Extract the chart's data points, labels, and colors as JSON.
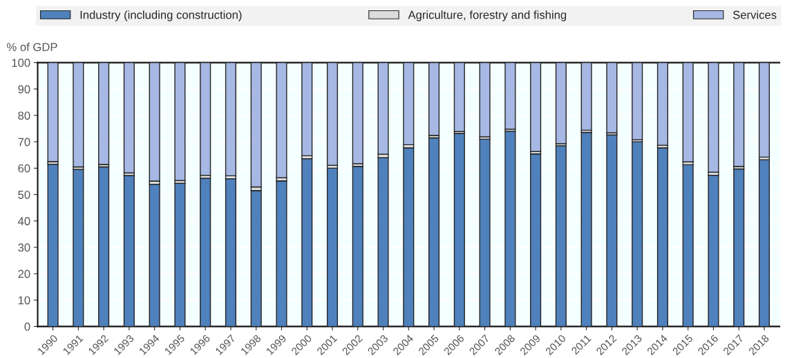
{
  "chart_data": {
    "type": "bar",
    "stacked": true,
    "ylabel": "% of GDP",
    "categories": [
      "1990",
      "1991",
      "1992",
      "1993",
      "1994",
      "1995",
      "1996",
      "1997",
      "1998",
      "1999",
      "2000",
      "2001",
      "2002",
      "2003",
      "2004",
      "2005",
      "2006",
      "2007",
      "2008",
      "2009",
      "2010",
      "2011",
      "2012",
      "2013",
      "2014",
      "2015",
      "2016",
      "2017",
      "2018"
    ],
    "series": [
      {
        "name": "Industry (including construction)",
        "color": "#4f81bd",
        "values": [
          61.5,
          59.5,
          60.5,
          57.2,
          53.9,
          54.3,
          56.2,
          56.0,
          51.5,
          55.2,
          63.6,
          60.0,
          60.7,
          64.0,
          67.7,
          71.5,
          73.2,
          71.0,
          74.0,
          65.4,
          68.5,
          73.6,
          72.6,
          70.0,
          67.7,
          61.3,
          57.3,
          59.7,
          63.2
        ]
      },
      {
        "name": "Agriculture, forestry and fishing",
        "color": "#dcdcdc",
        "values": [
          1.0,
          1.0,
          0.9,
          1.0,
          1.2,
          1.0,
          1.1,
          1.1,
          1.4,
          1.2,
          1.1,
          1.1,
          1.0,
          1.3,
          1.2,
          0.9,
          0.7,
          0.9,
          0.8,
          0.9,
          0.8,
          0.8,
          0.8,
          0.8,
          1.0,
          1.1,
          1.2,
          1.0,
          1.0
        ]
      },
      {
        "name": "Services",
        "color": "#a6b8e3",
        "values": [
          37.5,
          39.5,
          38.6,
          41.8,
          44.9,
          44.7,
          42.7,
          42.9,
          47.1,
          43.6,
          35.3,
          38.9,
          38.3,
          34.7,
          31.1,
          27.6,
          26.1,
          28.1,
          25.2,
          33.7,
          30.7,
          25.6,
          26.6,
          29.2,
          31.3,
          37.6,
          41.5,
          39.3,
          35.8
        ]
      }
    ],
    "ylim": [
      0,
      100
    ],
    "yticks": [
      0,
      10,
      20,
      30,
      40,
      50,
      60,
      70,
      80,
      90,
      100
    ],
    "grid": "y",
    "legend": "top"
  }
}
